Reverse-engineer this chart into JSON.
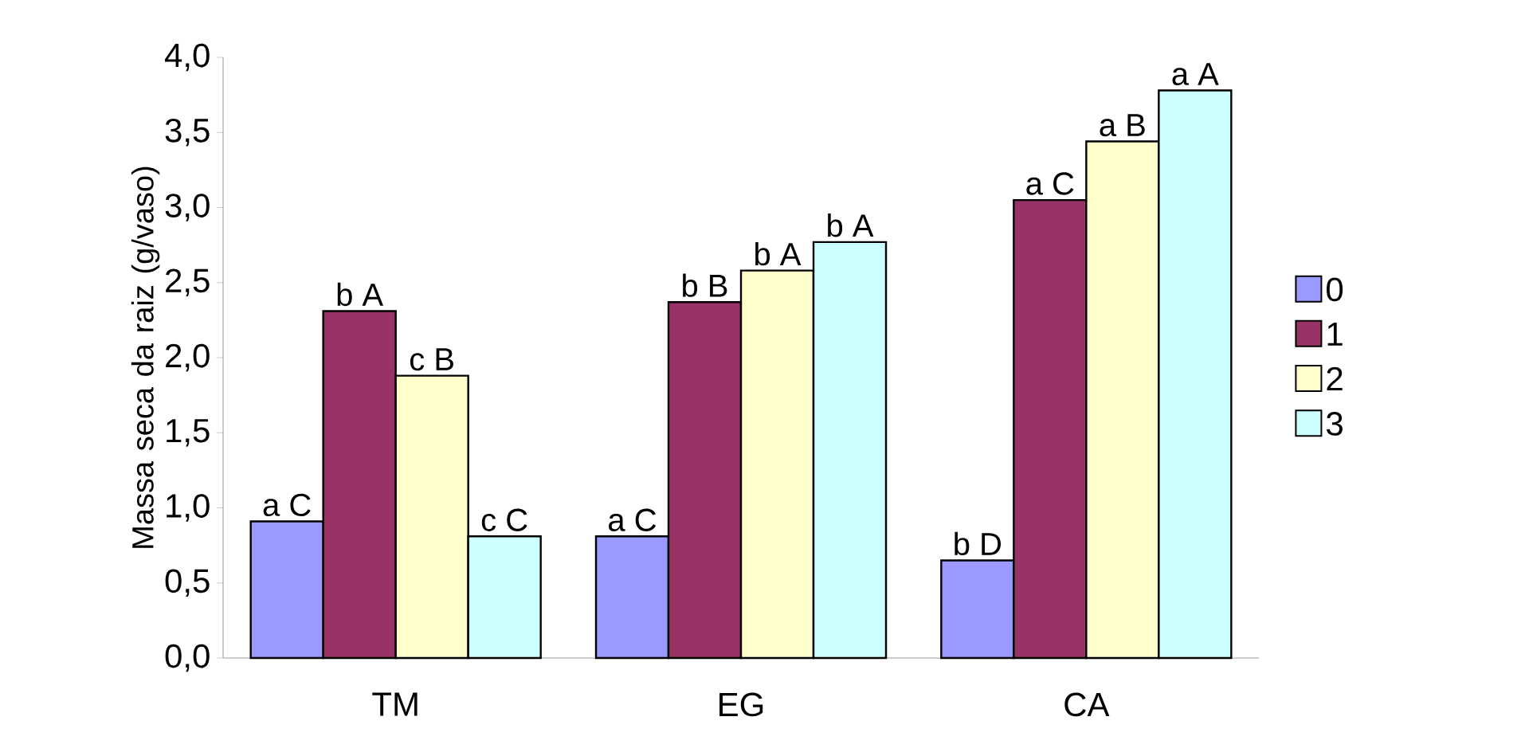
{
  "chart_data": {
    "type": "bar",
    "ylabel": "Massa seca da raiz (g/vaso)",
    "categories": [
      "TM",
      "EG",
      "CA"
    ],
    "series": [
      {
        "name": "0",
        "color": "#9999ff",
        "values": [
          0.91,
          0.81,
          0.65
        ],
        "value_labels": [
          "a C",
          "a C",
          "b D"
        ]
      },
      {
        "name": "1",
        "color": "#993366",
        "values": [
          2.31,
          2.37,
          3.05
        ],
        "value_labels": [
          "b A",
          "b B",
          "a C"
        ]
      },
      {
        "name": "2",
        "color": "#ffffcc",
        "values": [
          1.88,
          2.58,
          3.44
        ],
        "value_labels": [
          "c B",
          "b A",
          "a B"
        ]
      },
      {
        "name": "3",
        "color": "#ccffff",
        "values": [
          0.81,
          2.77,
          3.78
        ],
        "value_labels": [
          "c C",
          "b A",
          "a A"
        ]
      }
    ],
    "ylim": [
      0,
      4
    ],
    "yticks": [
      {
        "value": 0,
        "label": "0,0"
      },
      {
        "value": 0.5,
        "label": "0,5"
      },
      {
        "value": 1,
        "label": "1,0"
      },
      {
        "value": 1.5,
        "label": "1,5"
      },
      {
        "value": 2,
        "label": "2,0"
      },
      {
        "value": 2.5,
        "label": "2,5"
      },
      {
        "value": 3,
        "label": "3,0"
      },
      {
        "value": 3.5,
        "label": "3,5"
      },
      {
        "value": 4,
        "label": "4,0"
      }
    ],
    "legend": "right",
    "grid": false
  }
}
